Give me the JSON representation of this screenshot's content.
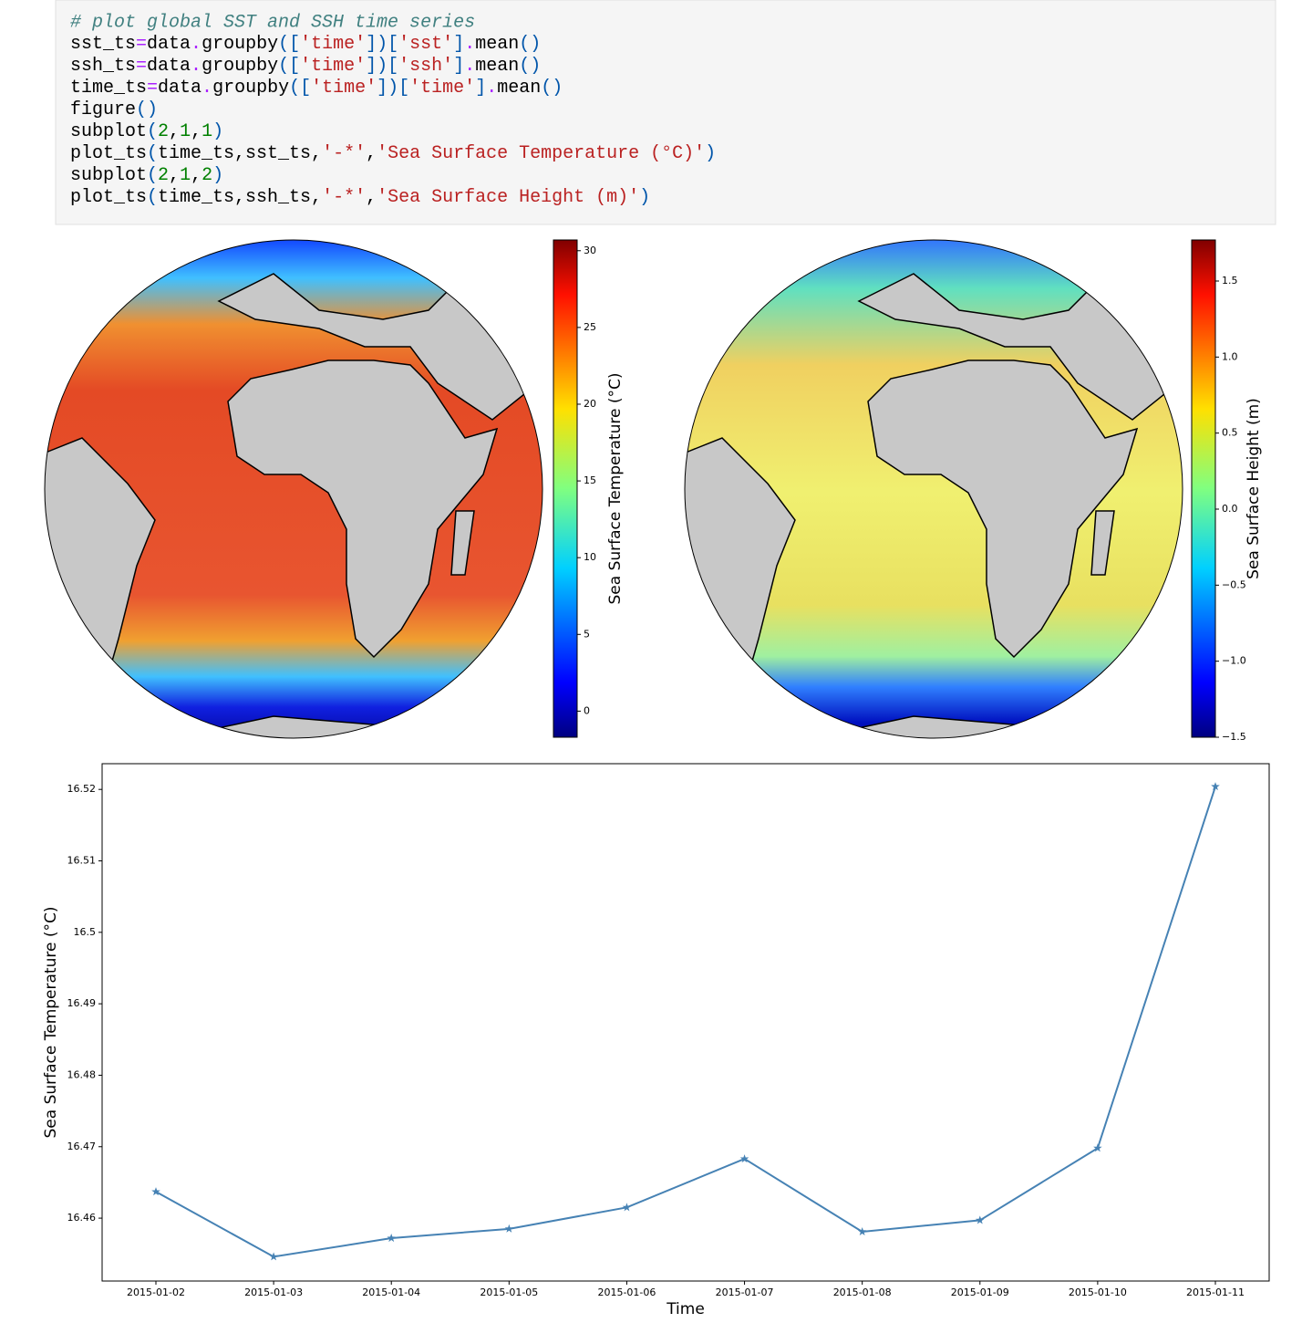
{
  "code": {
    "lines": [
      "# plot global SST and SSH time series",
      "sst_ts=data.groupby(['time'])['sst'].mean()",
      "ssh_ts=data.groupby(['time'])['ssh'].mean()",
      "time_ts=data.groupby(['time'])['time'].mean()",
      "figure()",
      "subplot(2,1,1)",
      "plot_ts(time_ts,sst_ts,'-*','Sea Surface Temperature (°C)')",
      "subplot(2,1,2)",
      "plot_ts(time_ts,ssh_ts,'-*','Sea Surface Height (m)')"
    ]
  },
  "chart_data": [
    {
      "type": "map",
      "colormap": "jet",
      "colorbar": {
        "label": "Sea Surface Temperature (°C)",
        "lim": [
          -1.7,
          30.7
        ],
        "ticks": [
          0,
          5,
          10,
          15,
          20,
          25,
          30
        ]
      }
    },
    {
      "type": "map",
      "colormap": "jet",
      "colorbar": {
        "label": "Sea Surface Height (m)",
        "lim": [
          -1.5,
          1.77
        ],
        "ticks": [
          {
            "value": -1.5,
            "label": "−1.5"
          },
          {
            "value": -1.0,
            "label": "−1.0"
          },
          {
            "value": -0.5,
            "label": "−0.5"
          },
          {
            "value": 0.0,
            "label": "0.0"
          },
          {
            "value": 0.5,
            "label": "0.5"
          },
          {
            "value": 1.0,
            "label": "1.0"
          },
          {
            "value": 1.5,
            "label": "1.5"
          }
        ]
      }
    },
    {
      "type": "line",
      "x_label": "Time",
      "y_label": "Sea Surface Temperature (°C)",
      "categories": [
        "2015-01-02",
        "2015-01-03",
        "2015-01-04",
        "2015-01-05",
        "2015-01-06",
        "2015-01-07",
        "2015-01-08",
        "2015-01-09",
        "2015-01-10",
        "2015-01-11"
      ],
      "values": [
        16.4637,
        16.4546,
        16.4572,
        16.4585,
        16.4615,
        16.4683,
        16.4581,
        16.4597,
        16.4698,
        16.5204
      ],
      "color": "#4682b4",
      "marker": "star",
      "ylim": [
        16.4512,
        16.5236
      ],
      "yticks": [
        16.46,
        16.47,
        16.48,
        16.49,
        16.5,
        16.51,
        16.52
      ]
    }
  ]
}
